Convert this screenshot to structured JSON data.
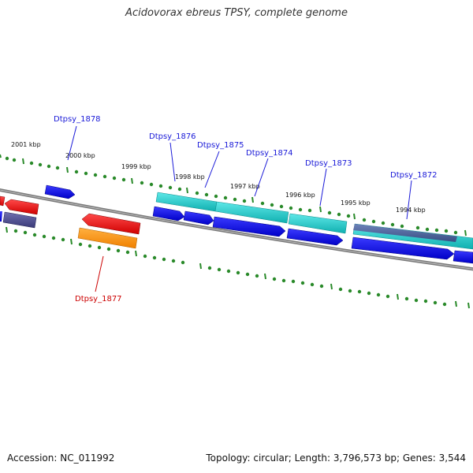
{
  "title": "Acidovorax ebreus TPSY, complete genome",
  "footer": {
    "accession": "Accession: NC_011992",
    "summary": "Topology: circular; Length: 3,796,573 bp; Genes: 3,544"
  },
  "scale_labels": [
    "2001 kbp",
    "2000 kbp",
    "1999 kbp",
    "1998 kbp",
    "1997 kbp",
    "1996 kbp",
    "1995 kbp",
    "1994 kbp"
  ],
  "genes": {
    "g1878": "Dtpsy_1878",
    "g1877": "Dtpsy_1877",
    "g1876": "Dtpsy_1876",
    "g1875": "Dtpsy_1875",
    "g1874": "Dtpsy_1874",
    "g1873": "Dtpsy_1873",
    "g1872": "Dtpsy_1872"
  },
  "colors": {
    "cds_blue": "#0a0adb",
    "rna_red": "#e81010",
    "orange": "#ff9a1a",
    "teal": "#17c4c4",
    "slate": "#4a4a88",
    "backbone": "#808080",
    "tick": "#2a8a2a",
    "label_blue": "#1a1ad8",
    "label_red": "#cc0000"
  }
}
